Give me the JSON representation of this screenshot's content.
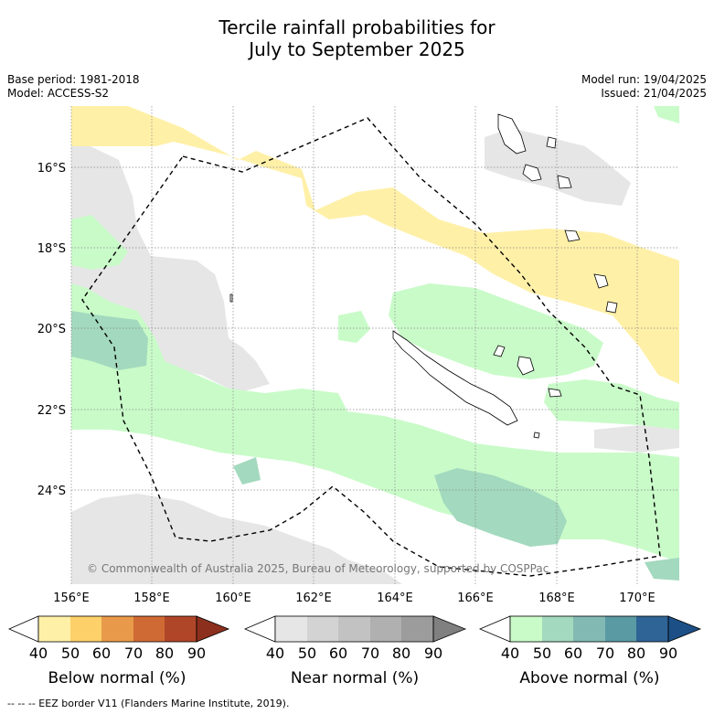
{
  "header": {
    "title_line1": "Tercile rainfall probabilities for",
    "title_line2": "July to September 2025",
    "base_period": "Base period: 1981-2018",
    "model": "Model: ACCESS-S2",
    "model_run": "Model run: 19/04/2025",
    "issued": "Issued: 21/04/2025"
  },
  "map": {
    "lat_labels": [
      "16°S",
      "18°S",
      "20°S",
      "22°S",
      "24°S"
    ],
    "lon_labels": [
      "156°E",
      "158°E",
      "160°E",
      "162°E",
      "164°E",
      "166°E",
      "168°E",
      "170°E"
    ],
    "copyright": "© Commonwealth of Australia 2025, Bureau of Meteorology, supported by COSPPac",
    "legend_colors": {
      "below": [
        "#fff0a8",
        "#fdd069",
        "#e89a4a",
        "#d06a35",
        "#b04628",
        "#8c2f1d"
      ],
      "near": [
        "#e6e6e6",
        "#d3d3d3",
        "#c2c2c2",
        "#b0b0b0",
        "#9c9c9c",
        "#808080"
      ],
      "above": [
        "#c9fbc9",
        "#a3d9be",
        "#83b9b3",
        "#5a9aa3",
        "#2f6496",
        "#1c4f86"
      ]
    }
  },
  "colorbars": [
    {
      "label": "Below normal (%)",
      "ticks": [
        "40",
        "50",
        "60",
        "70",
        "80",
        "90"
      ]
    },
    {
      "label": "Near normal (%)",
      "ticks": [
        "40",
        "50",
        "60",
        "70",
        "80",
        "90"
      ]
    },
    {
      "label": "Above normal (%)",
      "ticks": [
        "40",
        "50",
        "60",
        "70",
        "80",
        "90"
      ]
    }
  ],
  "footnote": "--  --  -- EEZ border V11 (Flanders Marine Institute, 2019)."
}
